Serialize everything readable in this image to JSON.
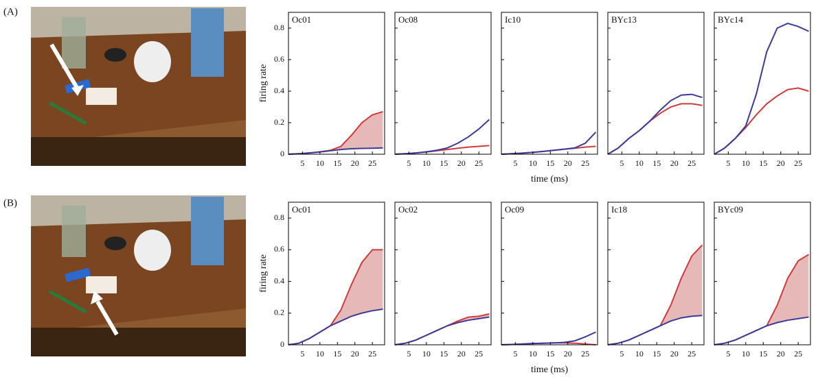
{
  "panel_labels": [
    "(A)",
    "(B)"
  ],
  "chart_data": [
    {
      "type": "line",
      "title": "Oc01",
      "ylabel": "firing rate",
      "ytick_labels": true,
      "fill_between_color": "#e6b9b9",
      "x": [
        1,
        4,
        7,
        10,
        13,
        16,
        19,
        22,
        25,
        28
      ],
      "xlim": [
        1,
        28.5
      ],
      "xticks": [
        5,
        10,
        15,
        20,
        25
      ],
      "ylim": [
        0,
        0.9
      ],
      "yticks": [
        0,
        0.2,
        0.4,
        0.6,
        0.8
      ],
      "series": [
        {
          "color": "#d03a3a",
          "values": [
            0,
            0.003,
            0.008,
            0.015,
            0.025,
            0.05,
            0.12,
            0.2,
            0.25,
            0.27
          ]
        },
        {
          "color": "#3a3a9a",
          "values": [
            0,
            0.003,
            0.008,
            0.014,
            0.022,
            0.03,
            0.035,
            0.037,
            0.038,
            0.04
          ]
        }
      ]
    },
    {
      "type": "line",
      "title": "Oc08",
      "ytick_labels": false,
      "fill_between_color": "#e6b9b9",
      "x": [
        1,
        4,
        7,
        10,
        13,
        16,
        19,
        22,
        25,
        28
      ],
      "xlim": [
        1,
        28.5
      ],
      "xticks": [
        5,
        10,
        15,
        20,
        25
      ],
      "ylim": [
        0,
        0.9
      ],
      "yticks": [
        0,
        0.2,
        0.4,
        0.6,
        0.8
      ],
      "series": [
        {
          "color": "#d03a3a",
          "values": [
            0,
            0.003,
            0.008,
            0.014,
            0.022,
            0.03,
            0.038,
            0.045,
            0.05,
            0.055
          ]
        },
        {
          "color": "#3a3a9a",
          "values": [
            0,
            0.003,
            0.008,
            0.015,
            0.025,
            0.04,
            0.07,
            0.11,
            0.16,
            0.22
          ]
        }
      ]
    },
    {
      "type": "line",
      "title": "Ic10",
      "xlabel": "time (ms)",
      "ytick_labels": false,
      "fill_between_color": "#e6b9b9",
      "x": [
        1,
        4,
        7,
        10,
        13,
        16,
        19,
        22,
        25,
        28
      ],
      "xlim": [
        1,
        28.5
      ],
      "xticks": [
        5,
        10,
        15,
        20,
        25
      ],
      "ylim": [
        0,
        0.9
      ],
      "yticks": [
        0,
        0.2,
        0.4,
        0.6,
        0.8
      ],
      "series": [
        {
          "color": "#d03a3a",
          "values": [
            0,
            0.003,
            0.007,
            0.012,
            0.018,
            0.025,
            0.032,
            0.038,
            0.045,
            0.05
          ]
        },
        {
          "color": "#3a3a9a",
          "values": [
            0,
            0.003,
            0.007,
            0.012,
            0.018,
            0.025,
            0.032,
            0.04,
            0.07,
            0.14
          ]
        }
      ]
    },
    {
      "type": "line",
      "title": "BYc13",
      "ytick_labels": false,
      "fill_between_color": "#e6b9b9",
      "x": [
        1,
        4,
        7,
        10,
        13,
        16,
        19,
        22,
        25,
        28
      ],
      "xlim": [
        1,
        28.5
      ],
      "xticks": [
        5,
        10,
        15,
        20,
        25
      ],
      "ylim": [
        0,
        0.9
      ],
      "yticks": [
        0,
        0.2,
        0.4,
        0.6,
        0.8
      ],
      "series": [
        {
          "color": "#d03a3a",
          "values": [
            0,
            0.04,
            0.1,
            0.15,
            0.21,
            0.26,
            0.3,
            0.32,
            0.32,
            0.31
          ]
        },
        {
          "color": "#3a3a9a",
          "values": [
            0,
            0.04,
            0.1,
            0.15,
            0.21,
            0.28,
            0.34,
            0.375,
            0.38,
            0.36
          ]
        }
      ]
    },
    {
      "type": "line",
      "title": "BYc14",
      "ytick_labels": false,
      "fill_between_color": "#e6b9b9",
      "x": [
        1,
        4,
        7,
        10,
        13,
        16,
        19,
        22,
        25,
        28
      ],
      "xlim": [
        1,
        28.5
      ],
      "xticks": [
        5,
        10,
        15,
        20,
        25
      ],
      "ylim": [
        0,
        0.9
      ],
      "yticks": [
        0,
        0.2,
        0.4,
        0.6,
        0.8
      ],
      "series": [
        {
          "color": "#d03a3a",
          "values": [
            0,
            0.04,
            0.1,
            0.17,
            0.25,
            0.32,
            0.37,
            0.41,
            0.42,
            0.4
          ]
        },
        {
          "color": "#3a3a9a",
          "values": [
            0,
            0.04,
            0.1,
            0.18,
            0.38,
            0.65,
            0.8,
            0.83,
            0.81,
            0.78
          ]
        }
      ]
    },
    {
      "type": "line",
      "title": "Oc01",
      "ylabel": "firing rate",
      "ytick_labels": true,
      "fill_between_color": "#e6b9b9",
      "x": [
        1,
        4,
        7,
        10,
        13,
        16,
        19,
        22,
        25,
        28
      ],
      "xlim": [
        1,
        28.5
      ],
      "xticks": [
        5,
        10,
        15,
        20,
        25
      ],
      "ylim": [
        0,
        0.9
      ],
      "yticks": [
        0,
        0.2,
        0.4,
        0.6,
        0.8
      ],
      "series": [
        {
          "color": "#d03a3a",
          "values": [
            0,
            0.01,
            0.04,
            0.08,
            0.12,
            0.22,
            0.38,
            0.52,
            0.6,
            0.6
          ]
        },
        {
          "color": "#3a3a9a",
          "values": [
            0,
            0.01,
            0.04,
            0.08,
            0.12,
            0.15,
            0.18,
            0.2,
            0.215,
            0.225
          ]
        }
      ]
    },
    {
      "type": "line",
      "title": "Oc02",
      "ytick_labels": false,
      "fill_between_color": "#e6b9b9",
      "x": [
        1,
        4,
        7,
        10,
        13,
        16,
        19,
        22,
        25,
        28
      ],
      "xlim": [
        1,
        28.5
      ],
      "xticks": [
        5,
        10,
        15,
        20,
        25
      ],
      "ylim": [
        0,
        0.9
      ],
      "yticks": [
        0,
        0.2,
        0.4,
        0.6,
        0.8
      ],
      "series": [
        {
          "color": "#d03a3a",
          "values": [
            0,
            0.01,
            0.03,
            0.06,
            0.09,
            0.12,
            0.15,
            0.175,
            0.18,
            0.195
          ]
        },
        {
          "color": "#3a3a9a",
          "values": [
            0,
            0.01,
            0.03,
            0.06,
            0.09,
            0.12,
            0.14,
            0.155,
            0.165,
            0.175
          ]
        }
      ]
    },
    {
      "type": "line",
      "title": "Oc09",
      "xlabel": "time (ms)",
      "ytick_labels": false,
      "fill_between_color": "#e6b9b9",
      "x": [
        1,
        4,
        7,
        10,
        13,
        16,
        19,
        22,
        25,
        28
      ],
      "xlim": [
        1,
        28.5
      ],
      "xticks": [
        5,
        10,
        15,
        20,
        25
      ],
      "ylim": [
        0,
        0.9
      ],
      "yticks": [
        0,
        0.2,
        0.4,
        0.6,
        0.8
      ],
      "series": [
        {
          "color": "#d03a3a",
          "values": [
            0,
            0.002,
            0.005,
            0.008,
            0.01,
            0.012,
            0.012,
            0.01,
            0.005,
            0
          ]
        },
        {
          "color": "#3a3a9a",
          "values": [
            0,
            0.002,
            0.005,
            0.008,
            0.01,
            0.012,
            0.015,
            0.025,
            0.05,
            0.08
          ]
        }
      ]
    },
    {
      "type": "line",
      "title": "Ic18",
      "ytick_labels": false,
      "fill_between_color": "#e6b9b9",
      "x": [
        1,
        4,
        7,
        10,
        13,
        16,
        19,
        22,
        25,
        28
      ],
      "xlim": [
        1,
        28.5
      ],
      "xticks": [
        5,
        10,
        15,
        20,
        25
      ],
      "ylim": [
        0,
        0.9
      ],
      "yticks": [
        0,
        0.2,
        0.4,
        0.6,
        0.8
      ],
      "series": [
        {
          "color": "#d03a3a",
          "values": [
            0,
            0.01,
            0.03,
            0.06,
            0.09,
            0.12,
            0.25,
            0.42,
            0.56,
            0.63
          ]
        },
        {
          "color": "#3a3a9a",
          "values": [
            0,
            0.01,
            0.03,
            0.06,
            0.09,
            0.12,
            0.15,
            0.17,
            0.18,
            0.185
          ]
        }
      ]
    },
    {
      "type": "line",
      "title": "BYc09",
      "ytick_labels": false,
      "fill_between_color": "#e6b9b9",
      "x": [
        1,
        4,
        7,
        10,
        13,
        16,
        19,
        22,
        25,
        28
      ],
      "xlim": [
        1,
        28.5
      ],
      "xticks": [
        5,
        10,
        15,
        20,
        25
      ],
      "ylim": [
        0,
        0.9
      ],
      "yticks": [
        0,
        0.2,
        0.4,
        0.6,
        0.8
      ],
      "series": [
        {
          "color": "#d03a3a",
          "values": [
            0,
            0.01,
            0.03,
            0.06,
            0.09,
            0.12,
            0.25,
            0.42,
            0.53,
            0.57
          ]
        },
        {
          "color": "#3a3a9a",
          "values": [
            0,
            0.01,
            0.03,
            0.06,
            0.09,
            0.12,
            0.14,
            0.155,
            0.165,
            0.175
          ]
        }
      ]
    }
  ]
}
